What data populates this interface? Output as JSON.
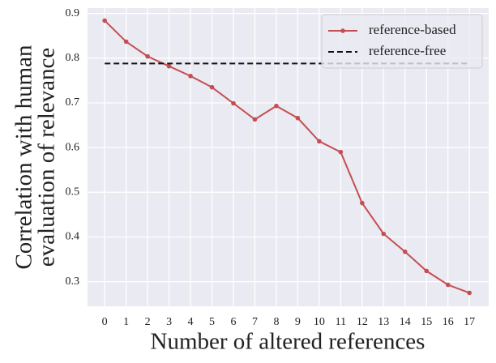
{
  "chart_data": {
    "type": "line",
    "xlabel": "Number of altered references",
    "ylabel": [
      "Correlation with human",
      "evaluation of relevance"
    ],
    "x": [
      0,
      1,
      2,
      3,
      4,
      5,
      6,
      7,
      8,
      9,
      10,
      11,
      12,
      13,
      14,
      15,
      16,
      17
    ],
    "series": [
      {
        "name": "reference-based",
        "color": "#c44e52",
        "dashed": false,
        "markers": true,
        "values": [
          0.884,
          0.837,
          0.804,
          0.782,
          0.76,
          0.735,
          0.699,
          0.663,
          0.693,
          0.666,
          0.614,
          0.59,
          0.476,
          0.407,
          0.367,
          0.324,
          0.293,
          0.275
        ]
      },
      {
        "name": "reference-free",
        "color": "#111111",
        "dashed": true,
        "markers": false,
        "values": [
          0.788,
          0.788,
          0.788,
          0.788,
          0.788,
          0.788,
          0.788,
          0.788,
          0.788,
          0.788,
          0.788,
          0.788,
          0.788,
          0.788,
          0.788,
          0.788,
          0.788,
          0.788
        ]
      }
    ],
    "xlim": [
      -0.8,
      17.9
    ],
    "ylim": [
      0.245,
      0.912
    ],
    "xticks": [
      0,
      1,
      2,
      3,
      4,
      5,
      6,
      7,
      8,
      9,
      10,
      11,
      12,
      13,
      14,
      15,
      16,
      17
    ],
    "yticks": [
      0.3,
      0.4,
      0.5,
      0.6,
      0.7,
      0.8,
      0.9
    ],
    "grid": true,
    "legend": "upper right"
  }
}
